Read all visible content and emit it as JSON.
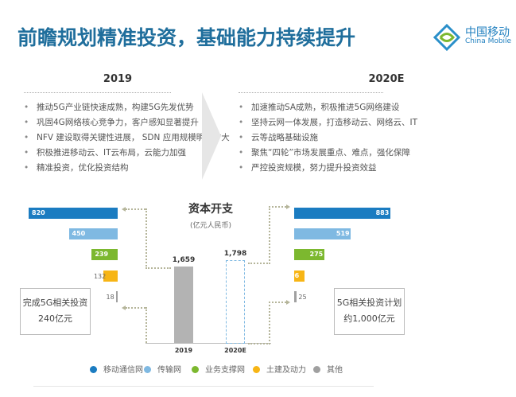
{
  "title": "前瞻规划精准投资，基础能力持续提升",
  "logo": {
    "cn": "中国移动",
    "en": "China Mobile",
    "icon": "china-mobile-logo-icon"
  },
  "left_panel": {
    "year": "2019",
    "bullets": [
      "推动5G产业链快速成熟，构建5G先发优势",
      "巩固4G网络核心竞争力，客户感知显著提升",
      "NFV 建设取得关键性进展， SDN 应用规模明显扩大",
      "积极推进移动云、IT云布局，云能力加强",
      "精准投资，优化投资结构"
    ]
  },
  "right_panel": {
    "year": "2020E",
    "bullets": [
      "加速推动SA成熟，积极推进5G网络建设",
      "坚持云网一体发展，打造移动云、网络云、IT",
      "云等战略基础设施",
      "聚焦“四轮”市场发展重点、难点，强化保障",
      "严控投资规模，努力提升投资效益"
    ]
  },
  "chart_data": {
    "type": "bar",
    "title": "资本开支",
    "subtitle": "(亿元人民币)",
    "categories": [
      "2019",
      "2020E"
    ],
    "totals": [
      1659,
      1798
    ],
    "total_labels": [
      "1,659",
      "1,798"
    ],
    "series": [
      {
        "name": "移动通信网",
        "color": "#1b7cc1",
        "values": [
          820,
          883
        ]
      },
      {
        "name": "传输网",
        "color": "#7fb9e2",
        "values": [
          450,
          519
        ]
      },
      {
        "name": "业务支撑网",
        "color": "#7cb82f",
        "values": [
          239,
          275
        ]
      },
      {
        "name": "土建及动力",
        "color": "#f7b515",
        "values": [
          132,
          96
        ]
      },
      {
        "name": "其他",
        "color": "#a0a0a0",
        "values": [
          18,
          25
        ]
      }
    ],
    "legend_position": "bottom"
  },
  "note_left": [
    "完成5G相关投资",
    "240亿元"
  ],
  "note_right": [
    "5G相关投资计划",
    "约1,000亿元"
  ]
}
